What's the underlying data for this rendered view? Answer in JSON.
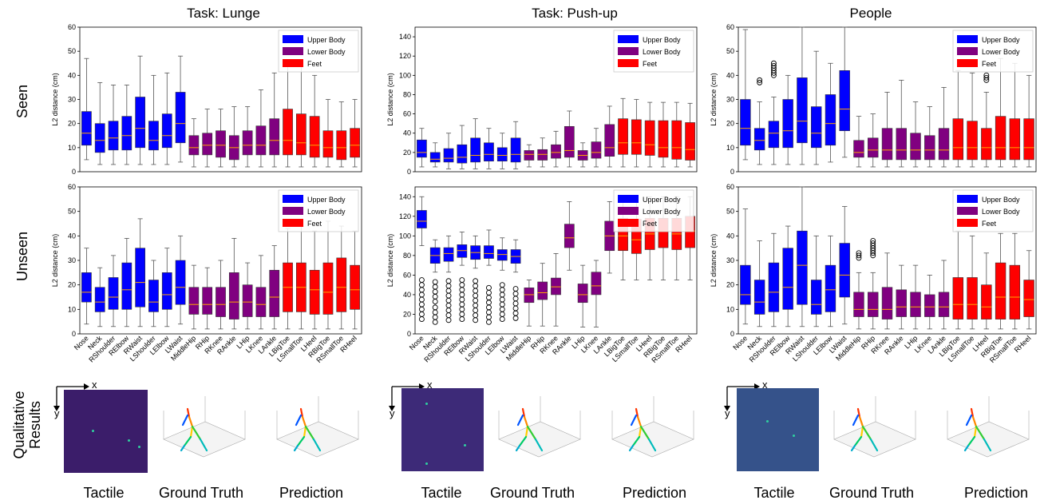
{
  "column_titles": [
    "Task: Lunge",
    "Task: Push-up",
    "People"
  ],
  "row_labels": {
    "seen": "Seen",
    "unseen": "Unseen",
    "qualitative": "Qualitative Results"
  },
  "bottom_labels": [
    "Tactile",
    "Ground Truth",
    "Prediction"
  ],
  "qual_axis_x": "x",
  "qual_axis_y": "y",
  "legend": [
    {
      "label": "Upper Body",
      "color": "#0000ff"
    },
    {
      "label": "Lower Body",
      "color": "#800080"
    },
    {
      "label": "Feet",
      "color": "#ff0000"
    }
  ],
  "chart_data": {
    "type": "box",
    "ylabel": "L2 distance (cm)",
    "categories": [
      "Nose",
      "Neck",
      "RShoulder",
      "RElbow",
      "RWaist",
      "LShoulder",
      "LElbow",
      "LWaist",
      "MiddleHip",
      "RHip",
      "RKnee",
      "RAnkle",
      "LHip",
      "LKnee",
      "LAnkle",
      "LBigToe",
      "LSmallToe",
      "LHeel",
      "RBigToe",
      "RSmallToe",
      "RHeel"
    ],
    "category_colors": [
      "#0000ff",
      "#0000ff",
      "#0000ff",
      "#0000ff",
      "#0000ff",
      "#0000ff",
      "#0000ff",
      "#0000ff",
      "#800080",
      "#800080",
      "#800080",
      "#800080",
      "#800080",
      "#800080",
      "#800080",
      "#ff0000",
      "#ff0000",
      "#ff0000",
      "#ff0000",
      "#ff0000",
      "#ff0000"
    ],
    "panels": [
      {
        "id": "lunge-seen",
        "ylim": [
          0,
          60
        ],
        "yticks": [
          0,
          10,
          20,
          30,
          40,
          50,
          60
        ],
        "show_xticks": false,
        "boxes": [
          [
            5,
            11,
            16,
            25,
            47
          ],
          [
            3,
            8,
            13,
            20,
            37
          ],
          [
            3,
            9,
            14,
            21,
            36
          ],
          [
            3,
            9,
            15,
            23,
            36
          ],
          [
            3,
            10,
            18,
            31,
            48
          ],
          [
            3,
            9,
            13,
            21,
            40
          ],
          [
            3,
            10,
            15,
            24,
            41
          ],
          [
            4,
            12,
            20,
            33,
            48
          ],
          [
            2,
            7,
            10,
            15,
            22
          ],
          [
            2,
            7,
            11,
            16,
            26
          ],
          [
            2,
            6,
            11,
            17,
            26
          ],
          [
            2,
            5,
            10,
            15,
            27
          ],
          [
            2,
            7,
            11,
            17,
            27
          ],
          [
            2,
            7,
            11,
            19,
            34
          ],
          [
            2,
            7,
            13,
            22,
            41
          ],
          [
            2,
            7,
            13,
            26,
            46
          ],
          [
            2,
            7,
            12,
            24,
            44
          ],
          [
            2,
            6,
            11,
            23,
            40
          ],
          [
            2,
            6,
            10,
            17,
            30
          ],
          [
            2,
            5,
            10,
            17,
            29
          ],
          [
            2,
            6,
            11,
            18,
            30
          ]
        ],
        "outliers": []
      },
      {
        "id": "pushup-seen",
        "ylim": [
          0,
          150
        ],
        "yticks": [
          0,
          20,
          40,
          60,
          80,
          100,
          120,
          140
        ],
        "show_xticks": false,
        "boxes": [
          [
            5,
            15,
            20,
            33,
            45
          ],
          [
            5,
            10,
            13,
            20,
            30
          ],
          [
            3,
            10,
            14,
            24,
            40
          ],
          [
            3,
            9,
            15,
            28,
            48
          ],
          [
            3,
            10,
            17,
            35,
            55
          ],
          [
            3,
            11,
            18,
            30,
            45
          ],
          [
            3,
            11,
            17,
            25,
            40
          ],
          [
            3,
            10,
            18,
            35,
            52
          ],
          [
            5,
            12,
            18,
            22,
            28
          ],
          [
            5,
            12,
            18,
            23,
            35
          ],
          [
            5,
            14,
            20,
            28,
            42
          ],
          [
            5,
            15,
            22,
            47,
            63
          ],
          [
            5,
            12,
            17,
            22,
            30
          ],
          [
            5,
            14,
            20,
            31,
            45
          ],
          [
            5,
            16,
            25,
            49,
            68
          ],
          [
            5,
            18,
            30,
            55,
            76
          ],
          [
            5,
            18,
            30,
            54,
            75
          ],
          [
            5,
            17,
            28,
            53,
            72
          ],
          [
            5,
            15,
            25,
            53,
            72
          ],
          [
            5,
            13,
            25,
            53,
            72
          ],
          [
            5,
            12,
            23,
            51,
            71
          ]
        ],
        "outliers": []
      },
      {
        "id": "people-seen",
        "ylim": [
          0,
          60
        ],
        "yticks": [
          0,
          10,
          20,
          30,
          40,
          50,
          60
        ],
        "show_xticks": false,
        "boxes": [
          [
            5,
            11,
            18,
            30,
            59
          ],
          [
            3,
            9,
            13,
            18,
            29
          ],
          [
            3,
            10,
            16,
            21,
            31
          ],
          [
            3,
            10,
            17,
            30,
            40
          ],
          [
            3,
            12,
            21,
            39,
            60
          ],
          [
            3,
            10,
            16,
            27,
            50
          ],
          [
            4,
            11,
            20,
            32,
            45
          ],
          [
            6,
            17,
            26,
            42,
            60
          ],
          [
            2,
            6,
            8,
            13,
            23
          ],
          [
            2,
            6,
            9,
            14,
            24
          ],
          [
            2,
            5,
            9,
            18,
            33
          ],
          [
            2,
            5,
            9,
            18,
            38
          ],
          [
            2,
            5,
            9,
            16,
            29
          ],
          [
            2,
            5,
            9,
            15,
            27
          ],
          [
            2,
            5,
            9,
            18,
            35
          ],
          [
            2,
            5,
            10,
            22,
            42
          ],
          [
            2,
            5,
            10,
            21,
            41
          ],
          [
            2,
            5,
            10,
            18,
            33
          ],
          [
            2,
            5,
            10,
            23,
            47
          ],
          [
            2,
            5,
            10,
            22,
            45
          ],
          [
            2,
            5,
            10,
            22,
            40
          ]
        ],
        "outliers": [
          {
            "index": 1,
            "values": [
              37,
              38
            ]
          },
          {
            "index": 2,
            "values": [
              40,
              41,
              42,
              43,
              44,
              45
            ]
          },
          {
            "index": 17,
            "values": [
              38,
              39,
              40
            ]
          }
        ]
      },
      {
        "id": "lunge-unseen",
        "ylim": [
          0,
          60
        ],
        "yticks": [
          0,
          10,
          20,
          30,
          40,
          50,
          60
        ],
        "show_xticks": true,
        "boxes": [
          [
            4,
            13,
            17,
            25,
            35
          ],
          [
            3,
            9,
            13,
            19,
            27
          ],
          [
            3,
            10,
            15,
            23,
            32
          ],
          [
            3,
            10,
            18,
            29,
            39
          ],
          [
            3,
            11,
            21,
            35,
            47
          ],
          [
            3,
            9,
            13,
            22,
            30
          ],
          [
            3,
            10,
            16,
            25,
            35
          ],
          [
            4,
            12,
            19,
            30,
            40
          ],
          [
            2,
            8,
            12,
            19,
            28
          ],
          [
            2,
            8,
            12,
            19,
            27
          ],
          [
            2,
            7,
            12,
            19,
            30
          ],
          [
            2,
            6,
            13,
            25,
            39
          ],
          [
            2,
            7,
            13,
            20,
            29
          ],
          [
            2,
            7,
            12,
            19,
            32
          ],
          [
            2,
            7,
            15,
            26,
            36
          ],
          [
            2,
            9,
            19,
            29,
            43
          ],
          [
            2,
            9,
            19,
            29,
            44
          ],
          [
            2,
            8,
            18,
            26,
            42
          ],
          [
            2,
            8,
            17,
            29,
            46
          ],
          [
            2,
            9,
            19,
            31,
            44
          ],
          [
            2,
            10,
            18,
            28,
            42
          ]
        ],
        "outliers": []
      },
      {
        "id": "pushup-unseen",
        "ylim": [
          0,
          150
        ],
        "yticks": [
          0,
          20,
          40,
          60,
          80,
          100,
          120,
          140
        ],
        "show_xticks": true,
        "boxes": [
          [
            90,
            108,
            115,
            126,
            140
          ],
          [
            63,
            72,
            80,
            88,
            96
          ],
          [
            63,
            74,
            82,
            88,
            100
          ],
          [
            70,
            78,
            85,
            91,
            104
          ],
          [
            67,
            76,
            83,
            90,
            100
          ],
          [
            70,
            77,
            82,
            90,
            106
          ],
          [
            65,
            75,
            81,
            86,
            98
          ],
          [
            63,
            72,
            79,
            86,
            96
          ],
          [
            8,
            32,
            40,
            47,
            55
          ],
          [
            8,
            35,
            42,
            53,
            72
          ],
          [
            8,
            40,
            48,
            57,
            82
          ],
          [
            65,
            88,
            98,
            112,
            135
          ],
          [
            7,
            32,
            40,
            51,
            70
          ],
          [
            7,
            40,
            49,
            63,
            75
          ],
          [
            62,
            85,
            100,
            115,
            135
          ],
          [
            55,
            85,
            100,
            118,
            140
          ],
          [
            55,
            82,
            96,
            117,
            140
          ],
          [
            55,
            86,
            102,
            118,
            140
          ],
          [
            55,
            88,
            105,
            118,
            140
          ],
          [
            55,
            86,
            102,
            118,
            140
          ],
          [
            55,
            88,
            105,
            120,
            140
          ]
        ],
        "outliers": [
          {
            "index": 0,
            "values": [
              15,
              20,
              25,
              30,
              35,
              40,
              45,
              50,
              55
            ]
          },
          {
            "index": 1,
            "values": [
              12,
              17,
              22,
              27,
              33,
              38,
              43,
              48,
              53
            ]
          },
          {
            "index": 2,
            "values": [
              14,
              19,
              24,
              29,
              34,
              39,
              44,
              49,
              54
            ]
          },
          {
            "index": 3,
            "values": [
              15,
              20,
              25,
              30,
              35,
              40,
              45,
              50,
              55
            ]
          },
          {
            "index": 4,
            "values": [
              14,
              19,
              24,
              29,
              34,
              39,
              44,
              49,
              54
            ]
          },
          {
            "index": 5,
            "values": [
              12,
              17,
              22,
              27,
              32,
              37,
              42,
              47
            ]
          },
          {
            "index": 6,
            "values": [
              15,
              20,
              25,
              30,
              35,
              40,
              45,
              50
            ]
          },
          {
            "index": 7,
            "values": [
              16,
              21,
              26,
              31,
              36,
              41,
              46
            ]
          }
        ]
      },
      {
        "id": "people-unseen",
        "ylim": [
          0,
          60
        ],
        "yticks": [
          0,
          10,
          20,
          30,
          40,
          50,
          60
        ],
        "show_xticks": true,
        "boxes": [
          [
            4,
            12,
            16,
            28,
            51
          ],
          [
            3,
            8,
            13,
            22,
            38
          ],
          [
            3,
            9,
            17,
            29,
            41
          ],
          [
            3,
            10,
            19,
            35,
            44
          ],
          [
            3,
            12,
            28,
            42,
            60
          ],
          [
            3,
            8,
            12,
            22,
            40
          ],
          [
            3,
            9,
            18,
            28,
            40
          ],
          [
            4,
            15,
            24,
            37,
            52
          ],
          [
            2,
            7,
            10,
            17,
            25
          ],
          [
            2,
            7,
            10,
            17,
            25
          ],
          [
            2,
            6,
            10,
            19,
            33
          ],
          [
            2,
            7,
            11,
            18,
            28
          ],
          [
            2,
            7,
            11,
            17,
            28
          ],
          [
            2,
            7,
            11,
            16,
            24
          ],
          [
            2,
            7,
            11,
            17,
            30
          ],
          [
            2,
            6,
            12,
            23,
            42
          ],
          [
            2,
            6,
            12,
            23,
            40
          ],
          [
            2,
            6,
            11,
            20,
            33
          ],
          [
            2,
            6,
            15,
            29,
            41
          ],
          [
            2,
            6,
            15,
            28,
            41
          ],
          [
            2,
            7,
            14,
            22,
            34
          ]
        ],
        "outliers": [
          {
            "index": 8,
            "values": [
              31,
              32,
              33
            ]
          },
          {
            "index": 9,
            "values": [
              32,
              33,
              34,
              35,
              36,
              37,
              38
            ]
          }
        ]
      }
    ]
  }
}
